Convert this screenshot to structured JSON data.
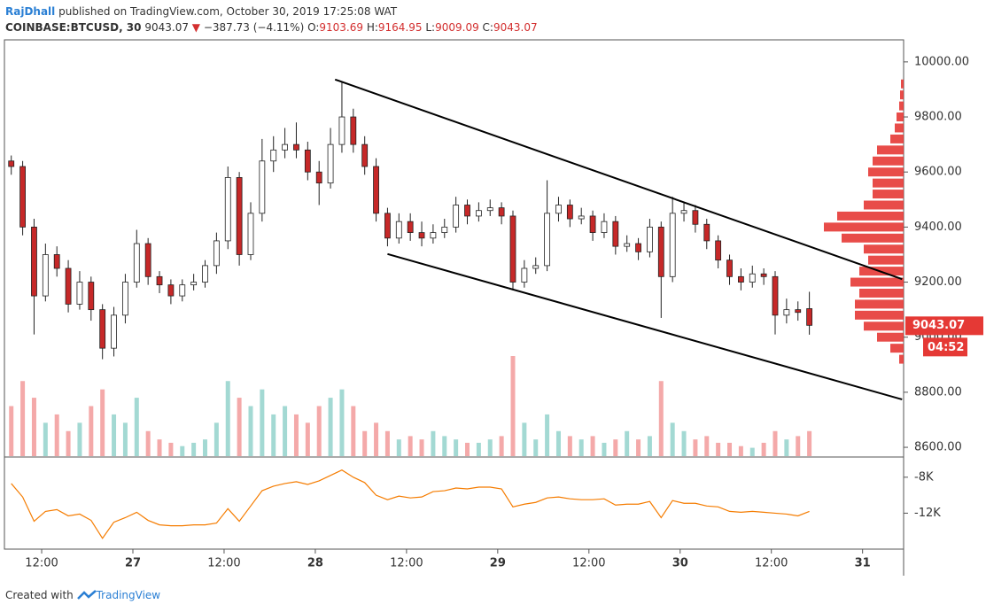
{
  "header": {
    "author": "RajDhall",
    "published": "published on TradingView.com, October 30, 2019 17:25:08 WAT",
    "symbol": "COINBASE:BTCUSD, 30",
    "last": "9043.07",
    "arrow": "▼",
    "change": "−387.73 (−4.11%)",
    "o_label": "O:",
    "o": "9103.69",
    "h_label": "H:",
    "h": "9164.95",
    "l_label": "L:",
    "l": "9009.09",
    "c_label": "C:",
    "c": "9043.07",
    "countdown": "04:52"
  },
  "footer": {
    "created": "Created with",
    "brand": "TradingView"
  },
  "chart_data": [
    {
      "type": "candlestick",
      "x": [
        8,
        9.5,
        11,
        12.5,
        14,
        15.5,
        17,
        18.5,
        20,
        21.5,
        23,
        24.5,
        26,
        27.5,
        29,
        30.5,
        32,
        33.5,
        35,
        36.5,
        38,
        39.5,
        41,
        42.5,
        44,
        45.5,
        47,
        48.5,
        50,
        51.5,
        53,
        54.5,
        56,
        57.5,
        59,
        60.5,
        62,
        63.5,
        65,
        66.5,
        68,
        69.5,
        71,
        72.5,
        74,
        75.5,
        77,
        78.5,
        80,
        81.5,
        83,
        84.5,
        86,
        87.5,
        89,
        90.5,
        92,
        93.5,
        95,
        96.5,
        98,
        99.5,
        101,
        102.5,
        104,
        105.5,
        107,
        108.5,
        110,
        111.5,
        113
      ],
      "open": [
        9640,
        9620,
        9400,
        9150,
        9300,
        9250,
        9120,
        9200,
        9100,
        8960,
        9080,
        9200,
        9340,
        9220,
        9190,
        9150,
        9190,
        9200,
        9260,
        9350,
        9580,
        9300,
        9450,
        9640,
        9680,
        9700,
        9680,
        9600,
        9560,
        9700,
        9800,
        9700,
        9620,
        9450,
        9360,
        9420,
        9380,
        9360,
        9380,
        9400,
        9480,
        9440,
        9460,
        9470,
        9440,
        9200,
        9250,
        9260,
        9450,
        9480,
        9430,
        9440,
        9380,
        9420,
        9330,
        9340,
        9310,
        9400,
        9220,
        9450,
        9460,
        9410,
        9350,
        9280,
        9220,
        9200,
        9230,
        9220,
        9080,
        9100,
        9103.69
      ],
      "high": [
        9660,
        9640,
        9430,
        9340,
        9330,
        9280,
        9240,
        9220,
        9120,
        9110,
        9230,
        9390,
        9360,
        9240,
        9210,
        9210,
        9230,
        9280,
        9380,
        9620,
        9600,
        9490,
        9720,
        9730,
        9760,
        9780,
        9710,
        9640,
        9760,
        9930,
        9830,
        9730,
        9650,
        9470,
        9450,
        9450,
        9420,
        9410,
        9430,
        9510,
        9500,
        9490,
        9500,
        9490,
        9460,
        9280,
        9290,
        9570,
        9510,
        9500,
        9470,
        9460,
        9450,
        9440,
        9370,
        9360,
        9430,
        9420,
        9510,
        9490,
        9480,
        9430,
        9370,
        9300,
        9250,
        9260,
        9250,
        9240,
        9140,
        9130,
        9164.95
      ],
      "low": [
        9590,
        9370,
        9010,
        9130,
        9220,
        9090,
        9100,
        9060,
        8920,
        8930,
        9050,
        9180,
        9190,
        9160,
        9120,
        9130,
        9170,
        9180,
        9230,
        9320,
        9260,
        9280,
        9420,
        9600,
        9650,
        9650,
        9570,
        9480,
        9540,
        9670,
        9670,
        9590,
        9420,
        9330,
        9340,
        9350,
        9330,
        9340,
        9360,
        9380,
        9410,
        9420,
        9440,
        9410,
        9170,
        9180,
        9230,
        9240,
        9420,
        9400,
        9410,
        9350,
        9360,
        9300,
        9310,
        9280,
        9290,
        9070,
        9200,
        9420,
        9380,
        9320,
        9250,
        9190,
        9170,
        9180,
        9190,
        9010,
        9050,
        9060,
        9009.09
      ],
      "close": [
        9620,
        9400,
        9150,
        9300,
        9250,
        9120,
        9200,
        9100,
        8960,
        9080,
        9200,
        9340,
        9220,
        9190,
        9150,
        9190,
        9200,
        9260,
        9350,
        9580,
        9300,
        9450,
        9640,
        9680,
        9700,
        9680,
        9600,
        9560,
        9700,
        9800,
        9700,
        9620,
        9450,
        9360,
        9420,
        9380,
        9360,
        9380,
        9400,
        9480,
        9440,
        9460,
        9470,
        9440,
        9200,
        9250,
        9260,
        9450,
        9480,
        9430,
        9440,
        9380,
        9420,
        9330,
        9340,
        9310,
        9400,
        9220,
        9450,
        9460,
        9410,
        9350,
        9280,
        9220,
        9200,
        9230,
        9220,
        9080,
        9100,
        9090,
        9043.07
      ],
      "volume": [
        30,
        45,
        35,
        20,
        25,
        15,
        20,
        30,
        40,
        25,
        20,
        35,
        15,
        10,
        8,
        6,
        8,
        10,
        20,
        45,
        35,
        30,
        40,
        25,
        30,
        25,
        20,
        30,
        35,
        40,
        30,
        15,
        20,
        15,
        10,
        12,
        10,
        15,
        12,
        10,
        8,
        8,
        10,
        12,
        60,
        20,
        10,
        25,
        15,
        12,
        10,
        12,
        8,
        10,
        15,
        10,
        12,
        45,
        20,
        15,
        10,
        12,
        8,
        8,
        6,
        5,
        8,
        15,
        10,
        12,
        15
      ],
      "colors": {
        "up": "#ffffff",
        "down": "#c62828",
        "wick": "#222222",
        "volume_up": "#a3d9d3",
        "volume_down": "#f4a9a9",
        "trendline": "#000000",
        "profile": "#e53935",
        "price_box": "#e53935"
      },
      "trendlines": [
        {
          "x": [
            50.6,
            125.2
          ],
          "y": [
            9936,
            9211
          ]
        },
        {
          "x": [
            57.5,
            125.2
          ],
          "y": [
            9302,
            8774
          ]
        }
      ],
      "volume_profile": {
        "levels": [
          8920,
          8960,
          9000,
          9040,
          9080,
          9120,
          9160,
          9200,
          9240,
          9280,
          9320,
          9360,
          9400,
          9440,
          9480,
          9520,
          9560,
          9600,
          9640,
          9680,
          9720,
          9760,
          9800,
          9840,
          9880,
          9920
        ],
        "sizes": [
          5,
          15,
          30,
          45,
          55,
          55,
          50,
          60,
          50,
          40,
          45,
          70,
          90,
          75,
          45,
          35,
          35,
          40,
          35,
          30,
          15,
          10,
          8,
          5,
          4,
          3
        ]
      },
      "xlim": [
        7.1,
        125.4
      ],
      "xticks": [
        {
          "value": 12,
          "label": "12:00"
        },
        {
          "value": 24,
          "label": "27"
        },
        {
          "value": 36,
          "label": "12:00"
        },
        {
          "value": 48,
          "label": "28"
        },
        {
          "value": 60,
          "label": "12:00"
        },
        {
          "value": 72,
          "label": "29"
        },
        {
          "value": 84,
          "label": "12:00"
        },
        {
          "value": 96,
          "label": "30"
        },
        {
          "value": 108,
          "label": "12:00"
        },
        {
          "value": 120,
          "label": "31"
        }
      ],
      "ylim": [
        8568,
        10080
      ],
      "yticks": [
        {
          "value": 8600,
          "label": "8600.00"
        },
        {
          "value": 8800,
          "label": "8800.00"
        },
        {
          "value": 9000,
          "label": "9000.00"
        },
        {
          "value": 9200,
          "label": "9200.00"
        },
        {
          "value": 9400,
          "label": "9400.00"
        },
        {
          "value": 9600,
          "label": "9600.00"
        },
        {
          "value": 9800,
          "label": "9800.00"
        },
        {
          "value": 10000,
          "label": "10000.00"
        }
      ],
      "grid": false
    },
    {
      "type": "line",
      "color": "#f57c00",
      "values": [
        -8700,
        -10200,
        -12900,
        -11800,
        -11600,
        -12300,
        -12100,
        -12800,
        -14800,
        -13000,
        -12500,
        -11900,
        -12800,
        -13300,
        -13400,
        -13400,
        -13300,
        -13300,
        -13100,
        -11500,
        -12900,
        -11200,
        -9500,
        -9000,
        -8700,
        -8500,
        -8800,
        -8400,
        -7800,
        -7200,
        -8000,
        -8600,
        -10000,
        -10500,
        -10100,
        -10300,
        -10200,
        -9600,
        -9500,
        -9200,
        -9300,
        -9100,
        -9100,
        -9300,
        -11300,
        -11000,
        -10800,
        -10300,
        -10200,
        -10400,
        -10500,
        -10500,
        -10400,
        -11100,
        -11000,
        -11000,
        -10700,
        -12500,
        -10600,
        -10900,
        -10900,
        -11200,
        -11300,
        -11800,
        -11900,
        -11800,
        -11900,
        -12000,
        -12100,
        -12300,
        -11800
      ],
      "ylim": [
        -16000,
        -5750
      ],
      "yticks": [
        {
          "value": -12000,
          "label": "-12K"
        },
        {
          "value": -8000,
          "label": "-8K"
        }
      ]
    }
  ]
}
